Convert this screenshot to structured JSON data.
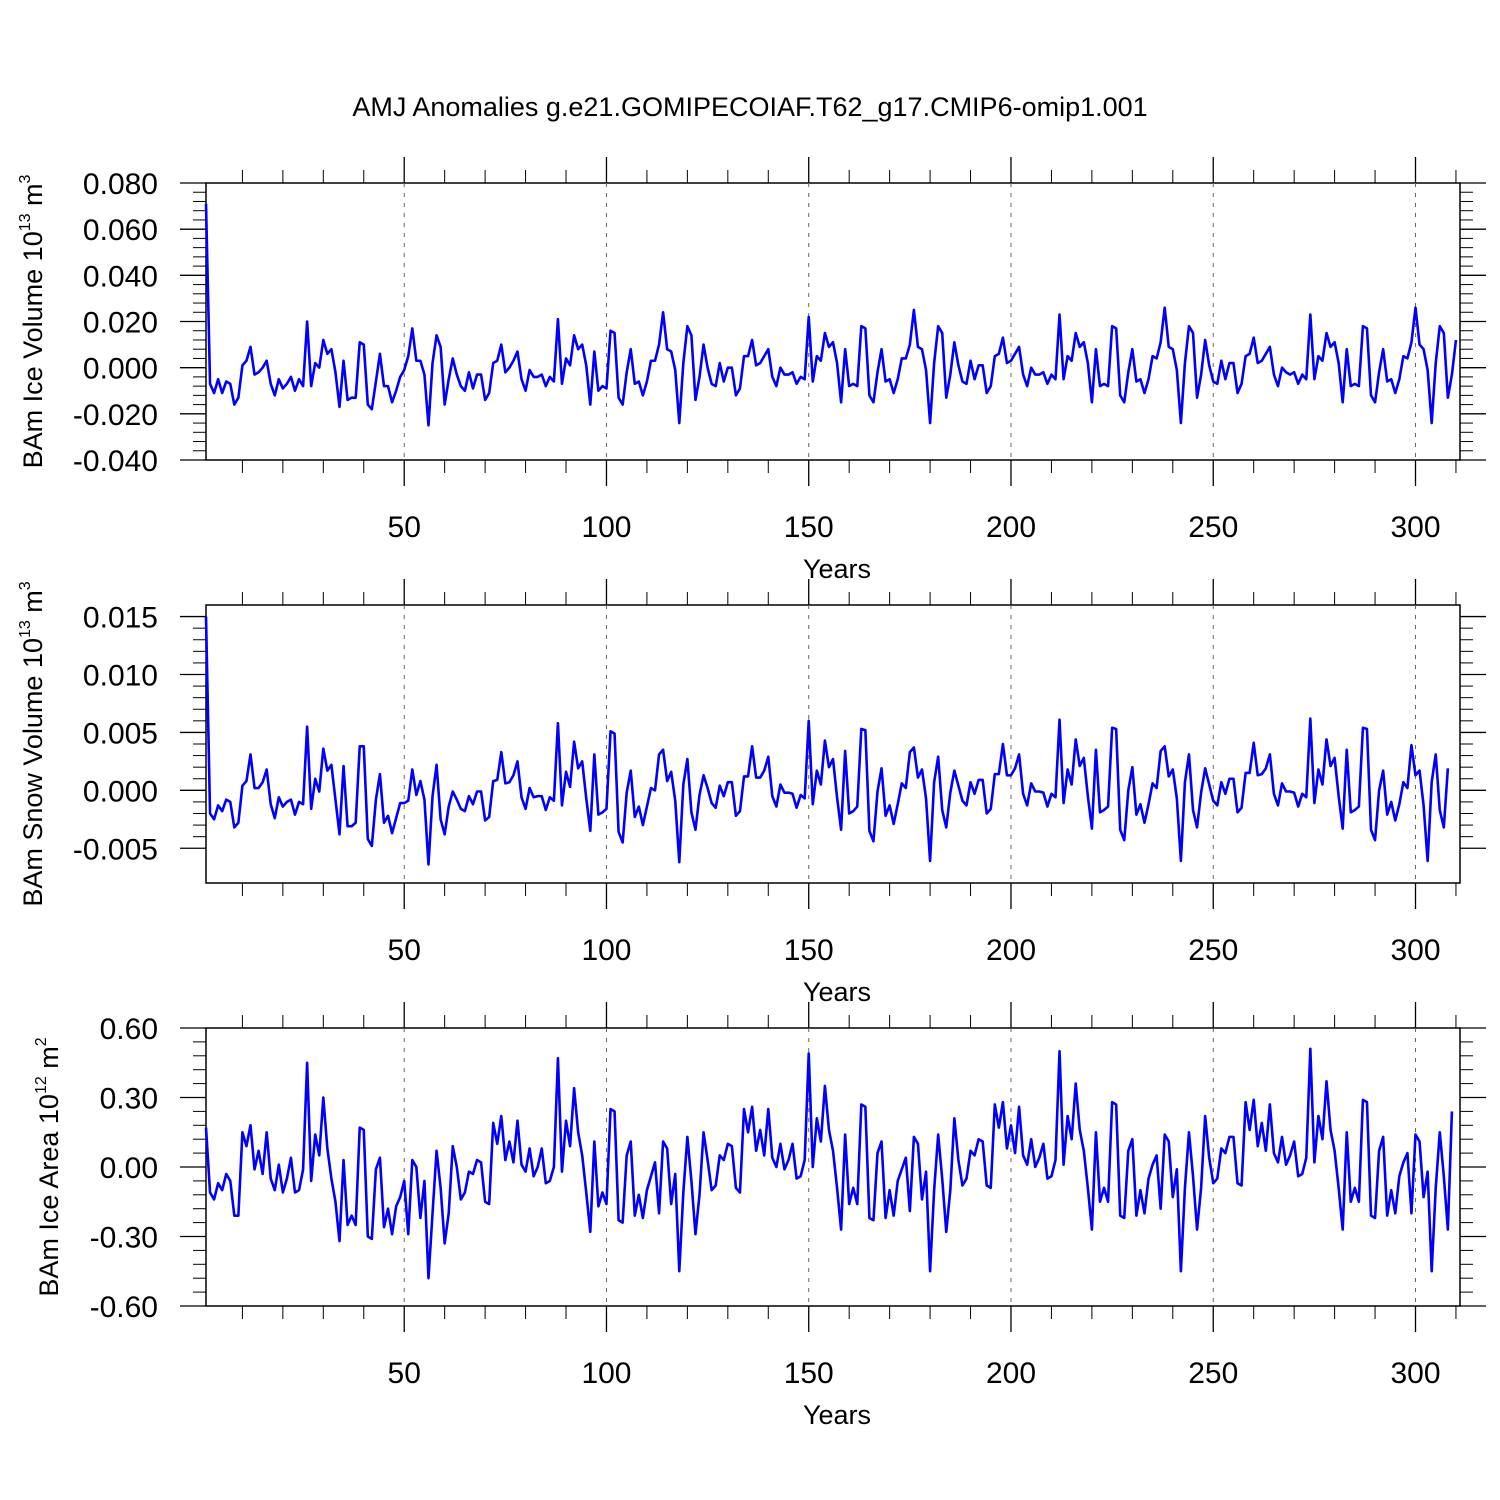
{
  "title": "AMJ Anomalies g.e21.GOMIPECOIAF.T62_g17.CMIP6-omip1.001",
  "colors": {
    "line": "#0000ff",
    "axis": "#000000",
    "grid": "#666666"
  },
  "chart_data": [
    {
      "type": "line",
      "name": "ice-volume",
      "ylabel_parts": [
        "BAm Ice Volume 10",
        "13",
        " m",
        "3"
      ],
      "xlabel": "Years",
      "xlim": [
        1,
        311
      ],
      "ylim": [
        -0.04,
        0.08
      ],
      "xticks": [
        50,
        100,
        150,
        200,
        250,
        300
      ],
      "xtick_labels": [
        "50",
        "100",
        "150",
        "200",
        "250",
        "300"
      ],
      "yticks": [
        -0.04,
        -0.02,
        0.0,
        0.02,
        0.04,
        0.06,
        0.08
      ],
      "ytick_labels": [
        "-0.040",
        "-0.020",
        "0.000",
        "0.020",
        "0.040",
        "0.060",
        "0.080"
      ],
      "grid_x": [
        50,
        100,
        150,
        200,
        250,
        300
      ],
      "x_start": 1,
      "values": [
        0.071,
        -0.007,
        -0.011,
        -0.005,
        -0.011,
        -0.006,
        -0.007,
        -0.016,
        -0.013,
        0.001,
        0.003,
        0.009,
        -0.003,
        -0.002,
        0.0,
        0.003,
        -0.007,
        -0.012,
        -0.005,
        -0.009,
        -0.007,
        -0.004,
        -0.01,
        -0.005,
        -0.008,
        0.02,
        -0.008,
        0.002,
        0.0,
        0.012,
        0.006,
        0.008,
        -0.002,
        -0.017,
        0.003,
        -0.014,
        -0.013,
        -0.013,
        0.011,
        0.01,
        -0.016,
        -0.018,
        -0.006,
        0.006,
        -0.008,
        -0.008,
        -0.015,
        -0.01,
        -0.004,
        -0.001,
        0.005,
        0.017,
        0.003,
        0.003,
        -0.003,
        -0.025,
        0.002,
        0.014,
        0.009,
        -0.016,
        -0.005,
        0.004,
        -0.003,
        -0.008,
        -0.01,
        -0.002,
        -0.009,
        -0.003,
        -0.003,
        -0.014,
        -0.011,
        0.002,
        0.003,
        0.01,
        -0.002,
        0.0,
        0.003,
        0.007,
        -0.005,
        -0.01,
        -0.001,
        -0.004,
        -0.004,
        -0.003,
        -0.008,
        -0.004,
        -0.006,
        0.021,
        -0.007,
        0.004,
        0.001,
        0.014,
        0.008,
        0.01,
        0.001,
        -0.016,
        0.007,
        -0.01,
        -0.008,
        -0.009,
        0.016,
        0.015,
        -0.013,
        -0.016,
        -0.002,
        0.008,
        -0.007,
        -0.006,
        -0.012,
        -0.006,
        0.003,
        0.003,
        0.01,
        0.024,
        0.008,
        0.007,
        -0.001,
        -0.024,
        0.002,
        0.018,
        0.014,
        -0.014,
        -0.004,
        0.01,
        0.0,
        -0.007,
        -0.008,
        0.002,
        -0.006,
        0.0,
        0.0,
        -0.012,
        -0.009,
        0.005,
        0.005,
        0.012,
        0.001,
        0.002,
        0.005,
        0.008,
        -0.004,
        -0.008,
        0.0,
        -0.003,
        -0.003,
        -0.002,
        -0.007,
        -0.004,
        -0.005,
        0.022,
        -0.006,
        0.005,
        0.003,
        0.015,
        0.009,
        0.011,
        0.002,
        -0.015,
        0.008,
        -0.008,
        -0.007,
        -0.008,
        0.018,
        0.017,
        -0.012,
        -0.015,
        -0.002,
        0.008,
        -0.006,
        -0.005,
        -0.011,
        -0.005,
        0.004,
        0.004,
        0.01,
        0.025,
        0.009,
        0.008,
        -0.001,
        -0.024,
        0.002,
        0.018,
        0.015,
        -0.013,
        -0.003,
        0.011,
        0.001,
        -0.006,
        -0.007,
        0.003,
        -0.005,
        0.001,
        0.001,
        -0.011,
        -0.008,
        0.005,
        0.006,
        0.013,
        0.002,
        0.003,
        0.006,
        0.009,
        -0.003,
        -0.008,
        0.0,
        -0.003,
        -0.003,
        -0.002,
        -0.007,
        -0.003,
        -0.005,
        0.023,
        -0.005,
        0.005,
        0.003,
        0.015,
        0.009,
        0.011,
        0.002,
        -0.015,
        0.008,
        -0.008,
        -0.007,
        -0.008,
        0.018,
        0.017,
        -0.012,
        -0.015,
        -0.002,
        0.008,
        -0.006,
        -0.005,
        -0.011,
        -0.005,
        0.005,
        0.004,
        0.011,
        0.026,
        0.009,
        0.008,
        -0.001,
        -0.024,
        0.002,
        0.018,
        0.015,
        -0.013,
        -0.003,
        0.012,
        0.001,
        -0.006,
        -0.007,
        0.003,
        -0.005,
        0.002,
        0.002,
        -0.011,
        -0.007,
        0.005,
        0.006,
        0.013,
        0.002,
        0.003,
        0.006,
        0.009,
        -0.003,
        -0.008,
        0.0,
        -0.002,
        -0.003,
        -0.002,
        -0.007,
        -0.003,
        -0.005,
        0.023,
        -0.005,
        0.005,
        0.003,
        0.015,
        0.009,
        0.011,
        0.002,
        -0.015,
        0.008,
        -0.008,
        -0.007,
        -0.008,
        0.018,
        0.017,
        -0.012,
        -0.015,
        -0.002,
        0.008,
        -0.006,
        -0.005,
        -0.011,
        -0.005,
        0.005,
        0.004,
        0.011,
        0.026,
        0.01,
        0.008,
        -0.001,
        -0.024,
        0.002,
        0.018,
        0.015,
        -0.013,
        -0.003,
        0.012
      ]
    },
    {
      "type": "line",
      "name": "snow-volume",
      "ylabel_parts": [
        "BAm Snow Volume 10",
        "13",
        " m",
        "3"
      ],
      "xlabel": "Years",
      "xlim": [
        1,
        311
      ],
      "ylim": [
        -0.008,
        0.016
      ],
      "xticks": [
        50,
        100,
        150,
        200,
        250,
        300
      ],
      "xtick_labels": [
        "50",
        "100",
        "150",
        "200",
        "250",
        "300"
      ],
      "yticks": [
        -0.005,
        0.0,
        0.005,
        0.01,
        0.015
      ],
      "ytick_labels": [
        "-0.005",
        "0.000",
        "0.005",
        "0.010",
        "0.015"
      ],
      "grid_x": [
        50,
        100,
        150,
        200,
        250,
        300
      ],
      "x_start": 1,
      "values": [
        0.015,
        -0.002,
        -0.0025,
        -0.0013,
        -0.0018,
        -0.0008,
        -0.001,
        -0.0032,
        -0.0028,
        0.0004,
        0.0008,
        0.0031,
        0.0002,
        0.0002,
        0.0007,
        0.0018,
        -0.0012,
        -0.0024,
        -0.0006,
        -0.0014,
        -0.001,
        -0.0008,
        -0.0021,
        -0.001,
        -0.0012,
        0.0055,
        -0.0016,
        0.001,
        -0.0001,
        0.0036,
        0.0017,
        0.0022,
        -0.0008,
        -0.0038,
        0.0021,
        -0.0031,
        -0.0031,
        -0.0028,
        0.0038,
        0.0038,
        -0.0042,
        -0.0048,
        -0.0008,
        0.0014,
        -0.0028,
        -0.0022,
        -0.0037,
        -0.0024,
        -0.0011,
        -0.0011,
        -0.0009,
        0.0018,
        -0.0004,
        0.0008,
        -0.0008,
        -0.0064,
        -0.0005,
        0.0022,
        -0.0025,
        -0.0038,
        -0.0014,
        -0.0001,
        -0.0008,
        -0.0016,
        -0.0018,
        -0.0005,
        -0.0012,
        -0.0001,
        -0.0001,
        -0.0026,
        -0.0023,
        0.0008,
        0.0009,
        0.0033,
        0.0006,
        0.0007,
        0.0013,
        0.0025,
        -0.0006,
        -0.0016,
        0.0002,
        -0.0006,
        -0.0005,
        -0.0005,
        -0.0017,
        -0.0006,
        -0.0009,
        0.0058,
        -0.0013,
        0.0016,
        0.0003,
        0.0042,
        0.0019,
        0.0025,
        -0.0007,
        -0.0035,
        0.0031,
        -0.0021,
        -0.0019,
        -0.0016,
        0.0051,
        0.0049,
        -0.0036,
        -0.0045,
        -0.0002,
        0.0017,
        -0.0023,
        -0.0014,
        -0.003,
        -0.0014,
        0.0002,
        0.0,
        0.0031,
        0.0035,
        0.0008,
        0.0016,
        -0.0009,
        -0.0062,
        0.0005,
        0.0027,
        -0.0019,
        -0.0034,
        -0.0004,
        0.0013,
        0.0002,
        -0.0011,
        -0.0015,
        0.0004,
        -0.0005,
        0.0007,
        0.0007,
        -0.0022,
        -0.0018,
        0.0012,
        0.0012,
        0.0038,
        0.0011,
        0.0011,
        0.0017,
        0.0029,
        -0.0005,
        -0.0014,
        0.0005,
        -0.0002,
        -0.0002,
        -0.0003,
        -0.0015,
        -0.0004,
        -0.0007,
        0.006,
        -0.0012,
        0.0017,
        0.0005,
        0.0043,
        0.002,
        0.0027,
        -0.0006,
        -0.0034,
        0.0034,
        -0.002,
        -0.0018,
        -0.0014,
        0.0053,
        0.0052,
        -0.0035,
        -0.0044,
        -0.0001,
        0.0019,
        -0.0022,
        -0.0013,
        -0.0029,
        -0.0012,
        0.0006,
        0.0002,
        0.0033,
        0.0037,
        0.0011,
        0.0018,
        -0.0007,
        -0.0061,
        0.0007,
        0.0029,
        -0.0017,
        -0.0032,
        -0.0002,
        0.0017,
        0.0004,
        -0.0009,
        -0.0013,
        0.0007,
        -0.0003,
        0.0009,
        0.0009,
        -0.002,
        -0.0016,
        0.0014,
        0.0014,
        0.004,
        0.0013,
        0.0013,
        0.0019,
        0.0031,
        -0.0003,
        -0.0013,
        0.0006,
        -0.0001,
        -0.0001,
        -0.0002,
        -0.0014,
        -0.0003,
        -0.0006,
        0.0061,
        -0.0011,
        0.0018,
        0.0005,
        0.0044,
        0.0021,
        0.0028,
        -0.0005,
        -0.0033,
        0.0035,
        -0.0019,
        -0.0017,
        -0.0014,
        0.0054,
        0.0053,
        -0.0034,
        -0.0043,
        0.0,
        0.002,
        -0.0021,
        -0.0012,
        -0.0028,
        -0.0012,
        0.0006,
        0.0002,
        0.0034,
        0.0038,
        0.0012,
        0.0018,
        -0.0007,
        -0.0061,
        0.0007,
        0.0031,
        -0.0017,
        -0.0032,
        -0.0002,
        0.0019,
        0.0005,
        -0.0009,
        -0.0013,
        0.0007,
        -0.0003,
        0.001,
        0.001,
        -0.0019,
        -0.0015,
        0.0015,
        0.0015,
        0.0041,
        0.0013,
        0.0014,
        0.0019,
        0.0031,
        -0.0003,
        -0.0013,
        0.0006,
        -0.0001,
        -0.0001,
        -0.0002,
        -0.0014,
        -0.0003,
        -0.0006,
        0.0062,
        -0.0011,
        0.0018,
        0.0005,
        0.0044,
        0.0021,
        0.0028,
        -0.0005,
        -0.0033,
        0.0035,
        -0.0019,
        -0.0017,
        -0.0014,
        0.0054,
        0.0053,
        -0.0034,
        -0.0043,
        0.0,
        0.0017,
        -0.0021,
        -0.001,
        -0.0026,
        -0.0012,
        0.0007,
        0.0002,
        0.0039,
        0.0013,
        0.0017,
        -0.0013,
        -0.0061,
        0.0007,
        0.0031,
        -0.0017,
        -0.0032,
        0.0019
      ]
    },
    {
      "type": "line",
      "name": "ice-area",
      "ylabel_parts": [
        "BAm Ice Area 10",
        "12",
        " m",
        "2"
      ],
      "xlabel": "Years",
      "xlim": [
        1,
        311
      ],
      "ylim": [
        -0.6,
        0.6
      ],
      "xticks": [
        50,
        100,
        150,
        200,
        250,
        300
      ],
      "xtick_labels": [
        "50",
        "100",
        "150",
        "200",
        "250",
        "300"
      ],
      "yticks": [
        -0.6,
        -0.3,
        0.0,
        0.3,
        0.6
      ],
      "ytick_labels": [
        "-0.60",
        "-0.30",
        "0.00",
        "0.30",
        "0.60"
      ],
      "grid_x": [
        50,
        100,
        150,
        200,
        250,
        300
      ],
      "x_start": 1,
      "values": [
        0.17,
        -0.11,
        -0.14,
        -0.07,
        -0.1,
        -0.03,
        -0.06,
        -0.21,
        -0.21,
        0.15,
        0.09,
        0.18,
        -0.01,
        0.07,
        -0.03,
        0.15,
        -0.05,
        -0.1,
        0.01,
        -0.11,
        -0.05,
        0.04,
        -0.11,
        -0.1,
        -0.01,
        0.45,
        -0.06,
        0.14,
        0.05,
        0.3,
        0.08,
        -0.05,
        -0.15,
        -0.32,
        0.03,
        -0.25,
        -0.21,
        -0.25,
        0.17,
        0.16,
        -0.3,
        -0.31,
        -0.01,
        0.04,
        -0.26,
        -0.18,
        -0.29,
        -0.17,
        -0.13,
        -0.06,
        -0.29,
        0.03,
        0.0,
        -0.22,
        -0.06,
        -0.48,
        -0.2,
        0.07,
        -0.09,
        -0.33,
        -0.2,
        0.09,
        0.0,
        -0.14,
        -0.11,
        -0.02,
        -0.03,
        0.03,
        0.02,
        -0.15,
        -0.16,
        0.19,
        0.1,
        0.22,
        0.03,
        0.11,
        0.02,
        0.2,
        0.01,
        -0.02,
        0.08,
        -0.04,
        0.0,
        0.08,
        -0.07,
        -0.06,
        0.0,
        0.47,
        -0.02,
        0.2,
        0.09,
        0.34,
        0.15,
        0.05,
        -0.11,
        -0.28,
        0.11,
        -0.17,
        -0.11,
        -0.16,
        0.25,
        0.24,
        -0.23,
        -0.24,
        0.05,
        0.11,
        -0.21,
        -0.12,
        -0.22,
        -0.1,
        -0.04,
        0.02,
        -0.2,
        0.11,
        0.08,
        -0.16,
        -0.03,
        -0.45,
        -0.11,
        0.13,
        -0.06,
        -0.29,
        -0.12,
        0.15,
        0.03,
        -0.1,
        -0.08,
        0.05,
        0.03,
        0.1,
        0.09,
        -0.09,
        -0.11,
        0.25,
        0.15,
        0.26,
        0.07,
        0.16,
        0.05,
        0.25,
        0.04,
        0.0,
        0.1,
        -0.01,
        0.03,
        0.1,
        -0.05,
        -0.04,
        0.03,
        0.49,
        0.0,
        0.21,
        0.11,
        0.35,
        0.16,
        0.07,
        -0.09,
        -0.27,
        0.14,
        -0.16,
        -0.09,
        -0.16,
        0.27,
        0.26,
        -0.22,
        -0.23,
        0.06,
        0.11,
        -0.22,
        -0.1,
        -0.21,
        -0.06,
        -0.01,
        0.04,
        -0.19,
        0.13,
        0.1,
        -0.14,
        -0.02,
        -0.45,
        -0.1,
        0.14,
        -0.05,
        -0.28,
        -0.1,
        0.21,
        0.03,
        -0.08,
        -0.05,
        0.07,
        0.05,
        0.12,
        0.11,
        -0.08,
        -0.09,
        0.27,
        0.17,
        0.28,
        0.08,
        0.18,
        0.06,
        0.26,
        0.05,
        0.01,
        0.12,
        0.0,
        0.04,
        0.1,
        -0.05,
        -0.04,
        0.03,
        0.5,
        0.01,
        0.22,
        0.12,
        0.36,
        0.16,
        0.07,
        -0.09,
        -0.27,
        0.15,
        -0.15,
        -0.09,
        -0.15,
        0.28,
        0.27,
        -0.21,
        -0.22,
        0.07,
        0.12,
        -0.21,
        -0.1,
        -0.2,
        -0.05,
        0.01,
        0.05,
        -0.18,
        0.14,
        0.11,
        -0.13,
        -0.01,
        -0.45,
        -0.09,
        0.15,
        -0.04,
        -0.27,
        -0.09,
        0.22,
        0.04,
        -0.07,
        -0.05,
        0.08,
        0.06,
        0.13,
        0.13,
        -0.07,
        -0.08,
        0.28,
        0.16,
        0.29,
        0.09,
        0.19,
        0.07,
        0.27,
        0.06,
        0.02,
        0.13,
        0.01,
        0.05,
        0.11,
        -0.04,
        -0.03,
        0.04,
        0.51,
        0.02,
        0.22,
        0.12,
        0.37,
        0.16,
        0.07,
        -0.09,
        -0.27,
        0.15,
        -0.15,
        -0.09,
        -0.15,
        0.29,
        0.28,
        -0.21,
        -0.22,
        0.07,
        0.13,
        -0.21,
        -0.1,
        -0.2,
        -0.04,
        0.02,
        0.06,
        -0.2,
        0.14,
        0.11,
        -0.13,
        -0.02,
        -0.45,
        -0.09,
        0.15,
        -0.04,
        -0.27,
        0.24
      ]
    }
  ]
}
